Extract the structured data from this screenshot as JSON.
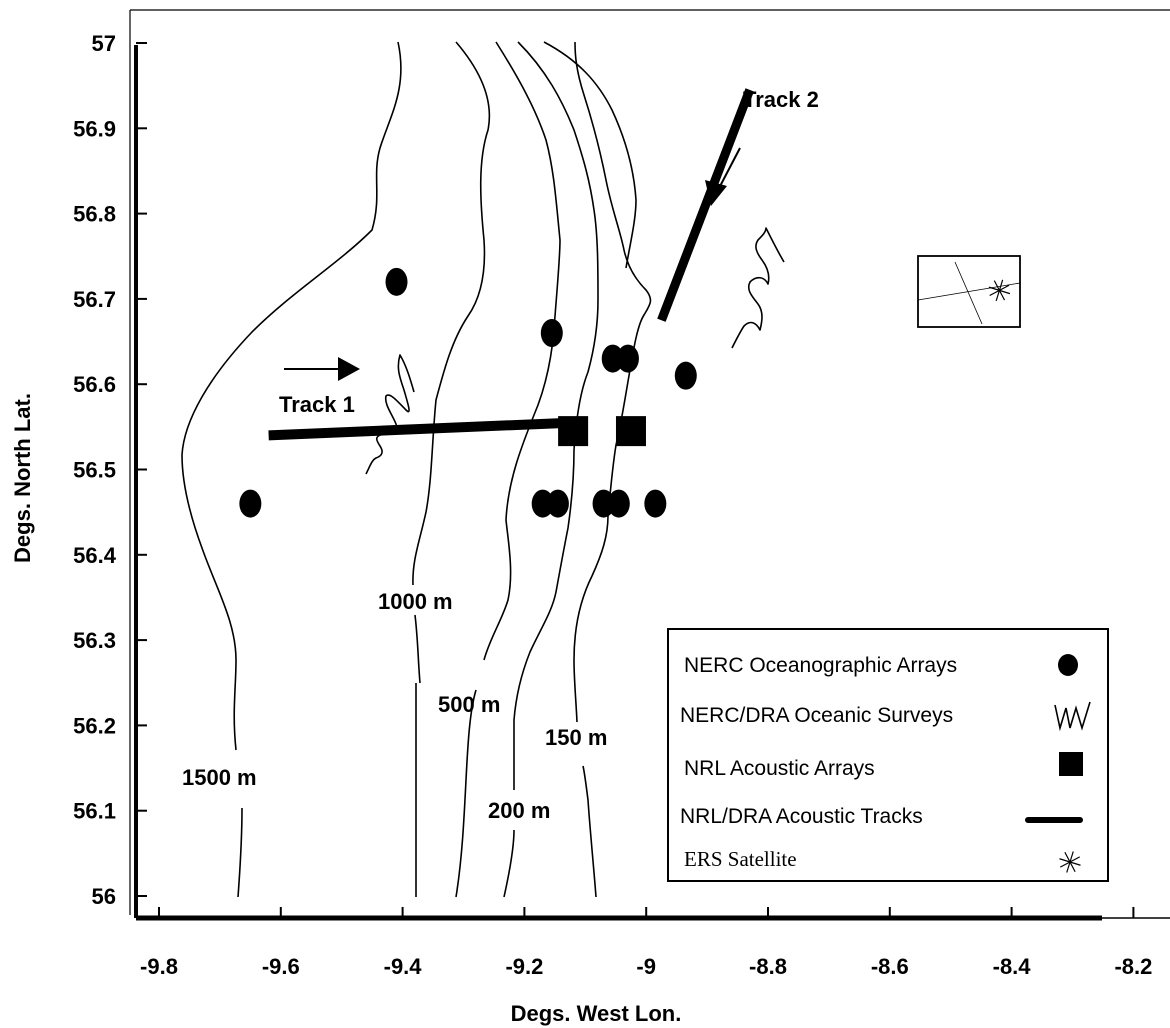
{
  "chart_data": {
    "type": "scatter",
    "xlabel": "Degs. West Lon.",
    "ylabel": "Degs. North Lat.",
    "xlim": [
      -9.8,
      -8.2
    ],
    "ylim": [
      56.0,
      57.0
    ],
    "x_ticks": [
      "-9.8",
      "-9.6",
      "-9.4",
      "-9.2",
      "-9",
      "-8.8",
      "-8.6",
      "-8.4",
      "-8.2"
    ],
    "y_ticks": [
      "57",
      "56.9",
      "56.8",
      "56.7",
      "56.6",
      "56.5",
      "56.4",
      "56.3",
      "56.2",
      "56.1",
      "56"
    ],
    "grid": false,
    "legend_position": "bottom-right",
    "legend": [
      {
        "label": "NERC Oceanographic Arrays",
        "symbol": "filled-circle"
      },
      {
        "label": "NERC/DRA Oceanic Surveys",
        "symbol": "zigzag"
      },
      {
        "label": "NRL Acoustic Arrays",
        "symbol": "filled-square"
      },
      {
        "label": "NRL/DRA Acoustic  Tracks",
        "symbol": "thick-line"
      },
      {
        "label": "ERS Satellite",
        "symbol": "star"
      }
    ],
    "series": [
      {
        "name": "NERC Oceanographic Arrays",
        "points": [
          {
            "x": -9.41,
            "y": 56.72
          },
          {
            "x": -9.155,
            "y": 56.66
          },
          {
            "x": -9.055,
            "y": 56.63
          },
          {
            "x": -9.03,
            "y": 56.63
          },
          {
            "x": -8.935,
            "y": 56.61
          },
          {
            "x": -9.65,
            "y": 56.46
          },
          {
            "x": -9.17,
            "y": 56.46
          },
          {
            "x": -9.145,
            "y": 56.46
          },
          {
            "x": -9.07,
            "y": 56.46
          },
          {
            "x": -9.045,
            "y": 56.46
          },
          {
            "x": -8.985,
            "y": 56.46
          }
        ]
      },
      {
        "name": "NRL Acoustic Arrays",
        "points": [
          {
            "x": -9.12,
            "y": 56.545
          },
          {
            "x": -9.025,
            "y": 56.545
          }
        ]
      },
      {
        "name": "NRL/DRA Acoustic  Tracks",
        "tracks": [
          {
            "label": "Track 1",
            "from": {
              "x": -9.62,
              "y": 56.54
            },
            "to": {
              "x": -9.12,
              "y": 56.555
            }
          },
          {
            "label": "Track 2",
            "from": {
              "x": -8.975,
              "y": 56.675
            },
            "to": {
              "x": -8.83,
              "y": 56.945
            }
          }
        ]
      },
      {
        "name": "NERC/DRA Oceanic Surveys",
        "surveys": [
          {
            "near": {
              "x": -9.38,
              "y": 56.56
            }
          },
          {
            "near": {
              "x": -8.77,
              "y": 56.72
            }
          }
        ]
      },
      {
        "name": "ERS Satellite",
        "points": [
          {
            "x": -8.42,
            "y": 56.71
          }
        ]
      }
    ],
    "contour_labels": [
      "1500 m",
      "1000 m",
      "500 m",
      "200 m",
      "150 m"
    ],
    "annotations": [
      "Track 1",
      "Track 2"
    ]
  }
}
